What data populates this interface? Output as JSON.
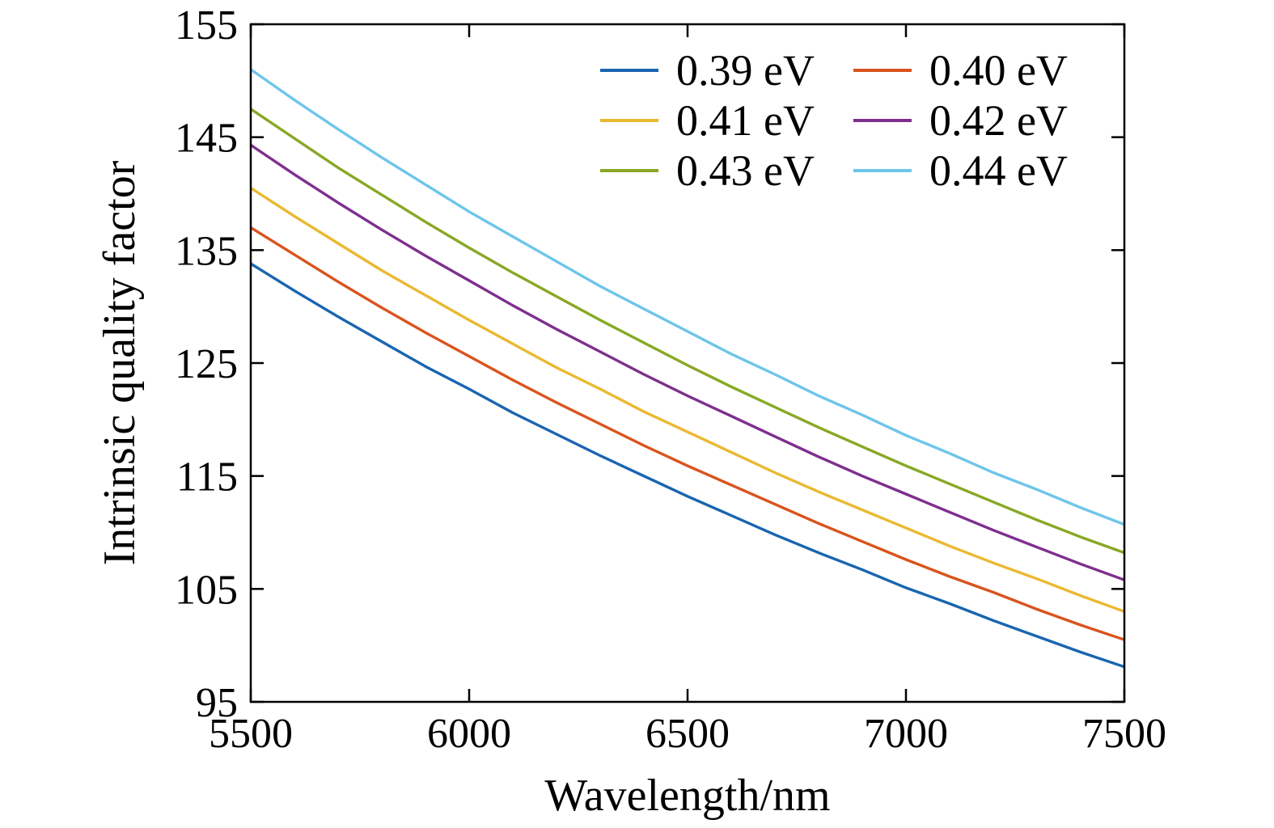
{
  "chart_data": {
    "type": "line",
    "title": "",
    "xlabel": "Wavelength/nm",
    "ylabel": "Intrinsic quality factor",
    "xlim": [
      5500,
      7500
    ],
    "ylim": [
      95,
      155
    ],
    "xticks": [
      5500,
      6000,
      6500,
      7000,
      7500
    ],
    "yticks": [
      95,
      105,
      115,
      125,
      135,
      145,
      155
    ],
    "grid": false,
    "legend_position": "top-right-inside",
    "legend_columns": 2,
    "x": [
      5500,
      5600,
      5700,
      5800,
      5900,
      6000,
      6100,
      6200,
      6300,
      6400,
      6500,
      6600,
      6700,
      6800,
      6900,
      7000,
      7100,
      7200,
      7300,
      7400,
      7500
    ],
    "series": [
      {
        "label": "0.39 eV",
        "color": "#1965b0",
        "values": [
          133.8,
          131.4,
          129.1,
          126.9,
          124.7,
          122.7,
          120.6,
          118.7,
          116.8,
          115.0,
          113.2,
          111.5,
          109.8,
          108.2,
          106.7,
          105.1,
          103.7,
          102.2,
          100.8,
          99.4,
          98.1
        ]
      },
      {
        "label": "0.40 eV",
        "color": "#d9541e",
        "values": [
          137.0,
          134.6,
          132.2,
          129.9,
          127.7,
          125.6,
          123.5,
          121.5,
          119.6,
          117.7,
          115.9,
          114.2,
          112.5,
          110.8,
          109.2,
          107.6,
          106.1,
          104.7,
          103.2,
          101.8,
          100.5
        ]
      },
      {
        "label": "0.41 eV",
        "color": "#eab930",
        "values": [
          140.5,
          138.0,
          135.6,
          133.2,
          131.0,
          128.8,
          126.7,
          124.6,
          122.7,
          120.7,
          118.9,
          117.1,
          115.3,
          113.6,
          112.0,
          110.4,
          108.8,
          107.3,
          105.9,
          104.4,
          103.0
        ]
      },
      {
        "label": "0.42 eV",
        "color": "#7e2f8e",
        "values": [
          144.3,
          141.7,
          139.2,
          136.8,
          134.5,
          132.3,
          130.1,
          128.0,
          126.0,
          124.0,
          122.1,
          120.3,
          118.5,
          116.7,
          115.0,
          113.4,
          111.8,
          110.2,
          108.7,
          107.2,
          105.8
        ]
      },
      {
        "label": "0.43 eV",
        "color": "#88a825",
        "values": [
          147.5,
          144.9,
          142.3,
          139.9,
          137.5,
          135.2,
          133.0,
          130.9,
          128.8,
          126.8,
          124.8,
          122.9,
          121.1,
          119.3,
          117.6,
          115.9,
          114.3,
          112.7,
          111.1,
          109.6,
          108.2
        ]
      },
      {
        "label": "0.44 eV",
        "color": "#6ec5ea",
        "values": [
          151.0,
          148.3,
          145.7,
          143.2,
          140.8,
          138.4,
          136.2,
          134.0,
          131.8,
          129.8,
          127.8,
          125.8,
          124.0,
          122.1,
          120.4,
          118.6,
          117.0,
          115.3,
          113.8,
          112.2,
          110.7
        ]
      }
    ]
  }
}
